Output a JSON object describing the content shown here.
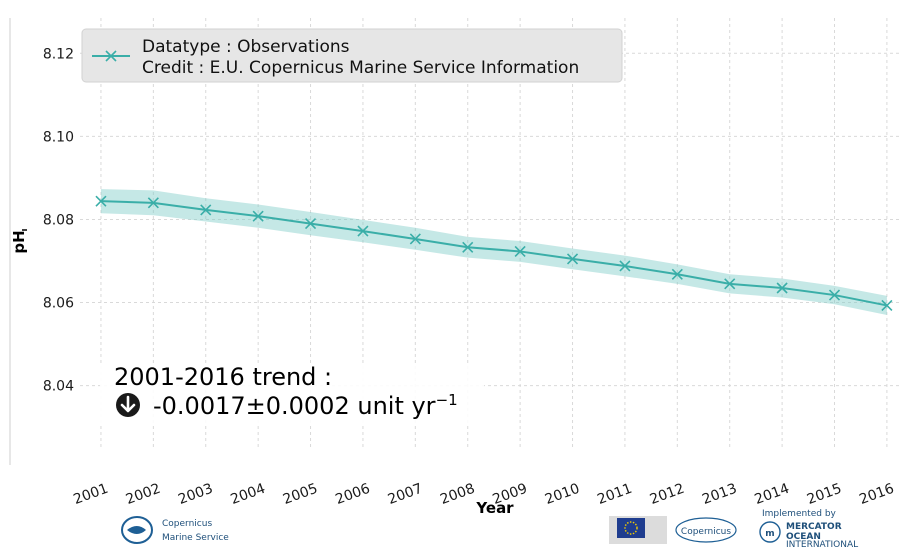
{
  "chart_data": {
    "type": "line",
    "x": [
      2001,
      2002,
      2003,
      2004,
      2005,
      2006,
      2007,
      2008,
      2009,
      2010,
      2011,
      2012,
      2013,
      2014,
      2015,
      2016
    ],
    "series": [
      {
        "values": [
          8.0844,
          8.084,
          8.0823,
          8.0808,
          8.079,
          8.0772,
          8.0753,
          8.0733,
          8.0723,
          8.0705,
          8.0688,
          8.0668,
          8.0645,
          8.0635,
          8.0618,
          8.0593
        ],
        "band_lower": [
          8.0815,
          8.081,
          8.0795,
          8.078,
          8.0762,
          8.0745,
          8.0727,
          8.0708,
          8.0698,
          8.068,
          8.0663,
          8.0645,
          8.0622,
          8.0612,
          8.0596,
          8.057
        ],
        "band_upper": [
          8.0873,
          8.087,
          8.0851,
          8.0836,
          8.0818,
          8.0799,
          8.078,
          8.0758,
          8.0748,
          8.073,
          8.0713,
          8.0692,
          8.0668,
          8.0658,
          8.064,
          8.0616
        ],
        "color": "#3aaea8",
        "band_color": "#7fcdc8",
        "marker": "x"
      }
    ],
    "xlabel": "Year",
    "ylabel": "pH",
    "ylim": [
      8.0245,
      8.1285
    ],
    "xlim": [
      2000.6,
      2016.25
    ],
    "yticks": [
      8.04,
      8.06,
      8.08,
      8.1,
      8.12
    ],
    "ytick_labels": [
      "8.04",
      "8.06",
      "8.08",
      "8.10",
      "8.12"
    ],
    "xtick_labels": [
      "2001",
      "2002",
      "2003",
      "2004",
      "2005",
      "2006",
      "2007",
      "2008",
      "2009",
      "2010",
      "2011",
      "2012",
      "2013",
      "2014",
      "2015",
      "2016"
    ],
    "grid": true,
    "legend": {
      "placement": "top-left",
      "lines": [
        "Datatype : Observations",
        "Credit : E.U. Copernicus Marine Service Information"
      ]
    },
    "annotation": {
      "title": "2001-2016 trend :",
      "value": "-0.0017±0.0002 unit yr",
      "value_superscript": "−1",
      "direction": "down"
    }
  },
  "logos": {
    "cmems_line1": "Copernicus",
    "cmems_line2": "Marine Service",
    "copernicus": "Copernicus",
    "mercator_implemented": "Implemented by",
    "mercator_line1": "MERCATOR",
    "mercator_line2": "OCEAN",
    "mercator_line3": "INTERNATIONAL"
  },
  "colors": {
    "line": "#3aaea8",
    "band": "#7fcdc8",
    "grid": "#d9d9d9",
    "legend_bg": "#e6e6e6"
  }
}
